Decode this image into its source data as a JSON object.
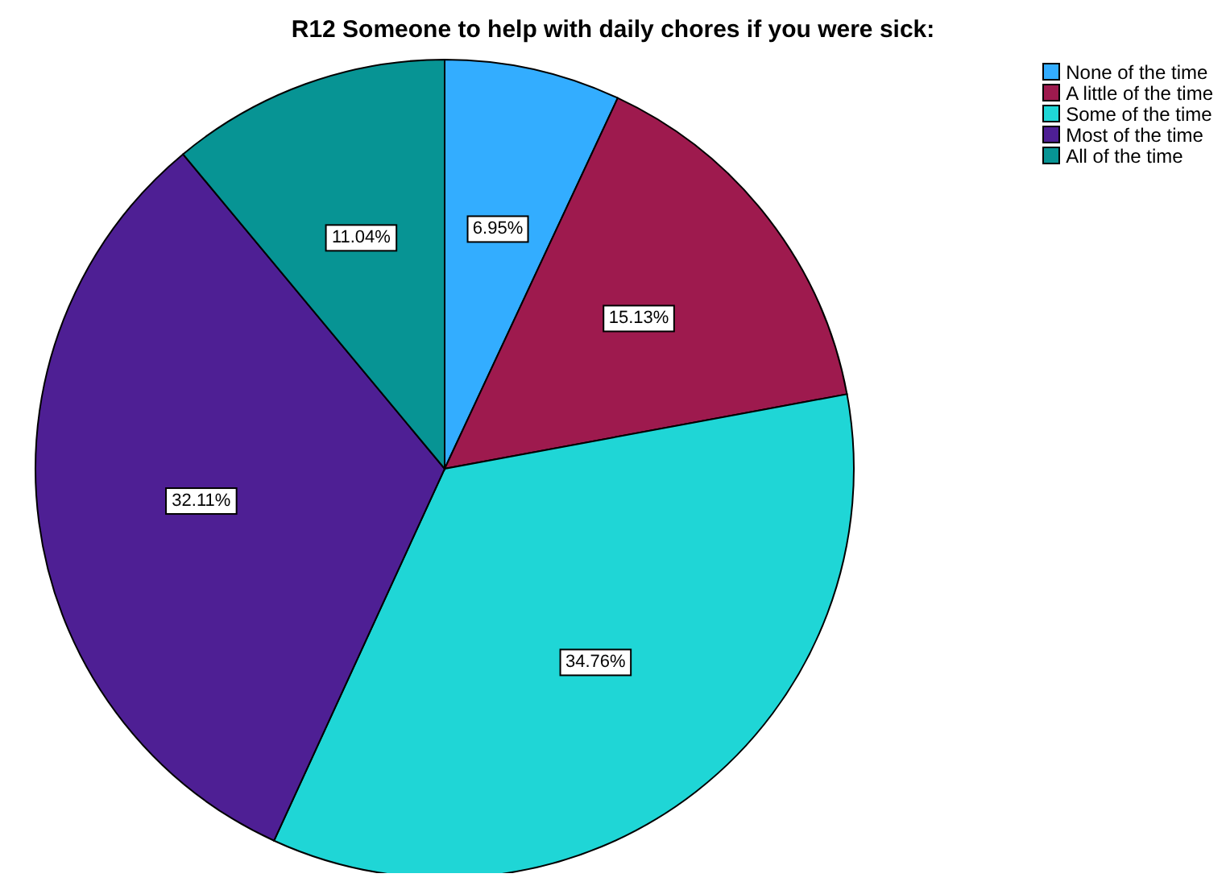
{
  "chart_data": {
    "type": "pie",
    "title": "R12 Someone to help with daily chores if you were sick:",
    "categories": [
      "None of the time",
      "A little of the time",
      "Some of the time",
      "Most of the time",
      "All of the time"
    ],
    "values": [
      6.95,
      15.13,
      34.76,
      32.11,
      11.04
    ],
    "colors": [
      "#33adff",
      "#9e1a4e",
      "#1fd6d6",
      "#4e1f94",
      "#079494"
    ],
    "value_labels": [
      "6.95%",
      "15.13%",
      "34.76%",
      "32.11%",
      "11.04%"
    ],
    "legend": "top right"
  }
}
